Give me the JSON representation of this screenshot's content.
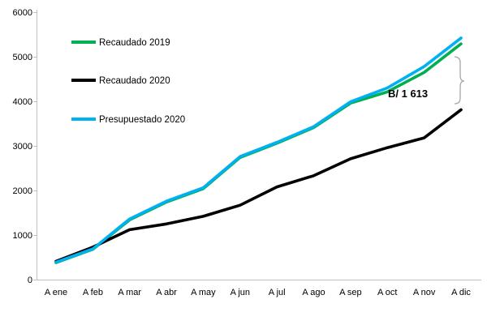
{
  "chart_data": {
    "type": "line",
    "title": "",
    "xlabel": "",
    "ylabel": "",
    "categories": [
      "A ene",
      "A feb",
      "A mar",
      "A abr",
      "A may",
      "A jun",
      "A jul",
      "A ago",
      "A sep",
      "A oct",
      "A nov",
      "A dic"
    ],
    "y_ticks": [
      "0",
      "1000",
      "2000",
      "3000",
      "4000",
      "5000",
      "6000"
    ],
    "ylim": [
      0,
      6000
    ],
    "grid": false,
    "legend_position": "inside-top-left",
    "series": [
      {
        "name": "Recaudado 2019",
        "color": "#00B050",
        "values": [
          380,
          680,
          1340,
          1740,
          2040,
          2740,
          3060,
          3410,
          3960,
          4210,
          4650,
          5290
        ]
      },
      {
        "name": "Recaudado 2020",
        "color": "#000000",
        "values": [
          410,
          730,
          1120,
          1250,
          1420,
          1670,
          2080,
          2330,
          2710,
          2960,
          3180,
          3810
        ]
      },
      {
        "name": "Presupuestado 2020",
        "color": "#00B0F0",
        "values": [
          390,
          690,
          1360,
          1760,
          2060,
          2760,
          3080,
          3430,
          3990,
          4300,
          4780,
          5420
        ]
      }
    ],
    "annotation": {
      "text": "B/ 1 613",
      "color": "#000000",
      "refers_to": "gap between Presupuestado 2020 and Recaudado 2020 at A dic"
    },
    "axis_color": "#BFBFBF",
    "brace_color": "#A6A6A6"
  }
}
